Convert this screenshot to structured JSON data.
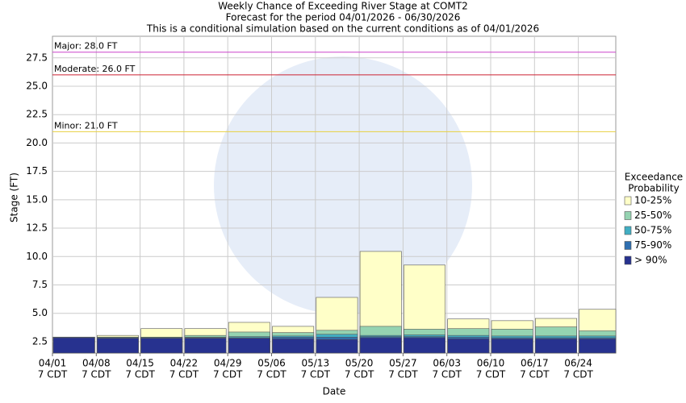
{
  "chart_data": {
    "type": "bar",
    "title": "Weekly Chance of Exceeding River Stage at COMT2",
    "subtitle": "Forecast for the period 04/01/2026 - 06/30/2026",
    "note": "This is a conditional simulation based on the current conditions as of 04/01/2026",
    "x_label": "Date",
    "y_label": "Stage (FT)",
    "categories": [
      "04/01",
      "04/08",
      "04/15",
      "04/22",
      "04/29",
      "05/06",
      "05/13",
      "05/20",
      "05/27",
      "06/03",
      "06/10",
      "06/17",
      "06/24"
    ],
    "time_label": "7 CDT",
    "legend_title": [
      "Exceedance",
      "Probability"
    ],
    "series": [
      {
        "name": "> 90%",
        "color": "#27328f",
        "values": [
          2.85,
          2.8,
          2.8,
          2.8,
          2.8,
          2.75,
          2.7,
          2.85,
          2.85,
          2.75,
          2.75,
          2.75,
          2.75
        ]
      },
      {
        "name": "75-90%",
        "color": "#2f6fb0",
        "values": [
          2.9,
          2.85,
          2.85,
          2.85,
          2.85,
          2.9,
          2.9,
          2.95,
          2.95,
          2.9,
          2.85,
          2.85,
          2.85
        ]
      },
      {
        "name": "50-75%",
        "color": "#41aec3",
        "values": [
          2.9,
          2.9,
          2.9,
          2.9,
          2.95,
          3.0,
          3.15,
          3.05,
          3.1,
          3.05,
          3.0,
          3.0,
          3.0
        ]
      },
      {
        "name": "25-50%",
        "color": "#95d3b1",
        "values": [
          2.9,
          2.9,
          2.9,
          3.05,
          3.35,
          3.3,
          3.5,
          3.85,
          3.6,
          3.65,
          3.6,
          3.8,
          3.45
        ]
      },
      {
        "name": "10-25%",
        "color": "#ffffc8",
        "values": [
          2.9,
          3.05,
          3.65,
          3.65,
          4.2,
          3.85,
          6.4,
          10.45,
          9.25,
          4.5,
          4.35,
          4.55,
          5.35
        ]
      }
    ],
    "thresholds": [
      {
        "label": "Major: 28.0 FT",
        "value": 28.0,
        "color": "#cc44cc"
      },
      {
        "label": "Moderate: 26.0 FT",
        "value": 26.0,
        "color": "#cc2233"
      },
      {
        "label": "Minor: 21.0 FT",
        "value": 21.0,
        "color": "#e8d040"
      }
    ],
    "ylim": [
      1.5,
      29.4
    ],
    "yticks": [
      2.5,
      {
        "value": 5,
        "label": "5.0"
      },
      7.5,
      {
        "value": 10,
        "label": "10.0"
      },
      12.5,
      {
        "value": 15,
        "label": "15.0"
      },
      17.5,
      {
        "value": 20,
        "label": "20.0"
      },
      22.5,
      {
        "value": 25,
        "label": "25.0"
      },
      27.5
    ],
    "grid": true
  }
}
